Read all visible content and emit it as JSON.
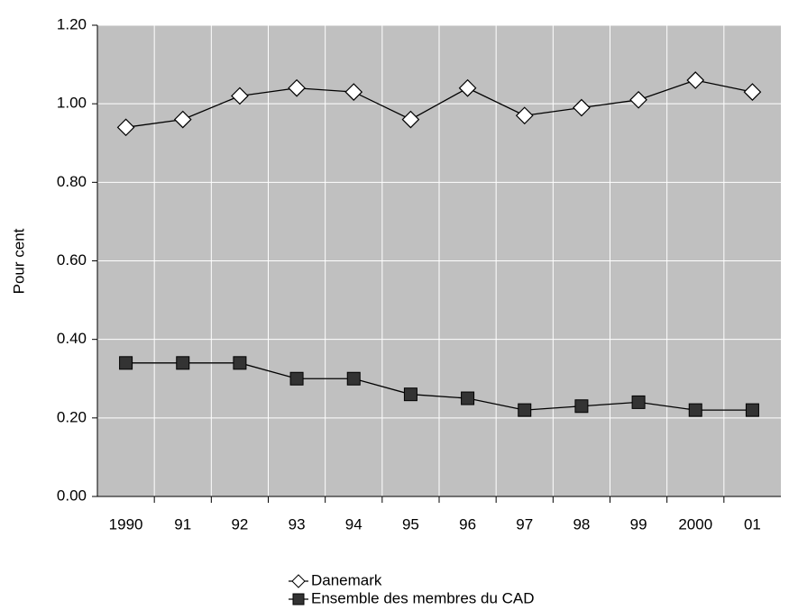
{
  "chart_data": {
    "type": "line",
    "ylabel": "Pour cent",
    "categories": [
      "1990",
      "91",
      "92",
      "93",
      "94",
      "95",
      "96",
      "97",
      "98",
      "99",
      "2000",
      "01"
    ],
    "series": [
      {
        "name": "Danemark",
        "color": "#000000",
        "marker": "diamond",
        "values": [
          0.94,
          0.96,
          1.02,
          1.04,
          1.03,
          0.96,
          1.04,
          0.97,
          0.99,
          1.01,
          1.06,
          1.03
        ]
      },
      {
        "name": "Ensemble des membres du CAD",
        "color": "#000000",
        "marker": "square",
        "values": [
          0.34,
          0.34,
          0.34,
          0.3,
          0.3,
          0.26,
          0.25,
          0.22,
          0.23,
          0.24,
          0.22,
          0.22
        ]
      }
    ],
    "ylim": [
      0,
      1.2
    ],
    "yticks": [
      {
        "value": 0,
        "label": "0.00"
      },
      {
        "value": 0.2,
        "label": "0.20"
      },
      {
        "value": 0.4,
        "label": "0.40"
      },
      {
        "value": 0.6,
        "label": "0.60"
      },
      {
        "value": 0.8,
        "label": "0.80"
      },
      {
        "value": 1,
        "label": "1.00"
      },
      {
        "value": 1.2,
        "label": "1.20"
      }
    ],
    "grid": true,
    "legend": "bottom"
  }
}
